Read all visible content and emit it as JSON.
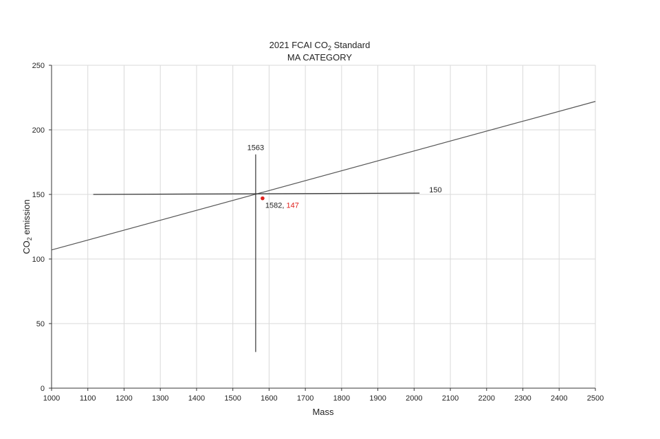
{
  "chart_data": {
    "type": "line",
    "title_main": "2021 FCAI CO",
    "title_sub_script": "2",
    "title_rest": " Standard",
    "subtitle": "MA CATEGORY",
    "xlabel": "Mass",
    "ylabel_main": "CO",
    "ylabel_sub_script": "2",
    "ylabel_rest": " emission",
    "xlim": [
      1000,
      2500
    ],
    "ylim": [
      0,
      250
    ],
    "x_ticks": [
      1000,
      1100,
      1200,
      1300,
      1400,
      1500,
      1600,
      1700,
      1800,
      1900,
      2000,
      2100,
      2200,
      2300,
      2400,
      2500
    ],
    "y_ticks": [
      0,
      50,
      100,
      150,
      200,
      250
    ],
    "grid": true,
    "series": [
      {
        "points": [
          [
            1000,
            107
          ],
          [
            2500,
            222
          ]
        ],
        "color": "#555555"
      },
      {
        "points": [
          [
            1115,
            150
          ],
          [
            2015,
            151
          ]
        ],
        "color": "#333333"
      },
      {
        "points": [
          [
            1563,
            181
          ],
          [
            1563,
            28
          ]
        ],
        "color": "#333333"
      }
    ],
    "point": {
      "x": 1582,
      "y": 147,
      "color": "#e0201c"
    },
    "annotations": {
      "vline_label": "1563",
      "hline_label": "150",
      "point_x_label": "1582, ",
      "point_y_label": "147"
    }
  }
}
